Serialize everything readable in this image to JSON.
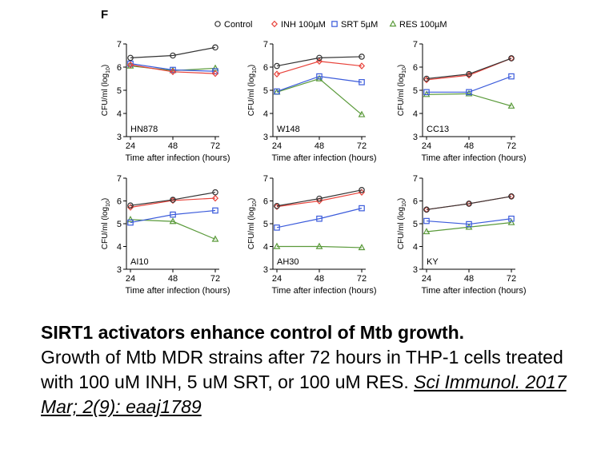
{
  "panel_letter": "F",
  "legend": {
    "items": [
      {
        "name": "Control",
        "color": "#333333",
        "marker": "circle"
      },
      {
        "name": "INH 100µM",
        "color": "#e8423a",
        "marker": "diamond"
      },
      {
        "name": "SRT 5µM",
        "color": "#3b5bdb",
        "marker": "square"
      },
      {
        "name": "RES 100µM",
        "color": "#5a9a3a",
        "marker": "triangle"
      }
    ]
  },
  "axis_text": {
    "xlabel": "Time after infection (hours)",
    "ylabel_main": "CFU/ml (log",
    "ylabel_sub": "10",
    "ylabel_end": ")"
  },
  "chart_data": [
    {
      "type": "line",
      "panel": "HN878",
      "x": [
        24,
        48,
        72
      ],
      "ylim": [
        3,
        7
      ],
      "yticks": [
        3,
        4,
        5,
        6,
        7
      ],
      "series": [
        {
          "name": "Control",
          "values": [
            6.4,
            6.5,
            6.85
          ]
        },
        {
          "name": "INH 100µM",
          "values": [
            6.1,
            5.8,
            5.72
          ]
        },
        {
          "name": "SRT 5µM",
          "values": [
            6.15,
            5.88,
            5.82
          ]
        },
        {
          "name": "RES 100µM",
          "values": [
            6.05,
            5.85,
            5.95
          ]
        }
      ]
    },
    {
      "type": "line",
      "panel": "W148",
      "x": [
        24,
        48,
        72
      ],
      "ylim": [
        3,
        7
      ],
      "yticks": [
        3,
        4,
        5,
        6,
        7
      ],
      "series": [
        {
          "name": "Control",
          "values": [
            6.05,
            6.4,
            6.45
          ]
        },
        {
          "name": "INH 100µM",
          "values": [
            5.7,
            6.25,
            6.05
          ]
        },
        {
          "name": "SRT 5µM",
          "values": [
            4.95,
            5.6,
            5.35
          ]
        },
        {
          "name": "RES 100µM",
          "values": [
            4.92,
            5.5,
            3.95
          ]
        }
      ]
    },
    {
      "type": "line",
      "panel": "CC13",
      "x": [
        24,
        48,
        72
      ],
      "ylim": [
        3,
        7
      ],
      "yticks": [
        3,
        4,
        5,
        6,
        7
      ],
      "series": [
        {
          "name": "Control",
          "values": [
            5.5,
            5.7,
            6.38
          ]
        },
        {
          "name": "INH 100µM",
          "values": [
            5.45,
            5.65,
            6.38
          ]
        },
        {
          "name": "SRT 5µM",
          "values": [
            4.92,
            4.92,
            5.6
          ]
        },
        {
          "name": "RES 100µM",
          "values": [
            4.82,
            4.85,
            4.32
          ]
        }
      ]
    },
    {
      "type": "line",
      "panel": "AI10",
      "x": [
        24,
        48,
        72
      ],
      "ylim": [
        3,
        7
      ],
      "yticks": [
        3,
        4,
        5,
        6,
        7
      ],
      "series": [
        {
          "name": "Control",
          "values": [
            5.8,
            6.05,
            6.38
          ]
        },
        {
          "name": "INH 100µM",
          "values": [
            5.72,
            6.02,
            6.12
          ]
        },
        {
          "name": "SRT 5µM",
          "values": [
            5.05,
            5.4,
            5.58
          ]
        },
        {
          "name": "RES 100µM",
          "values": [
            5.18,
            5.1,
            4.32
          ]
        }
      ]
    },
    {
      "type": "line",
      "panel": "AH30",
      "x": [
        24,
        48,
        72
      ],
      "ylim": [
        3,
        7
      ],
      "yticks": [
        3,
        4,
        5,
        6,
        7
      ],
      "series": [
        {
          "name": "Control",
          "values": [
            5.78,
            6.1,
            6.48
          ]
        },
        {
          "name": "INH 100µM",
          "values": [
            5.75,
            6.0,
            6.38
          ]
        },
        {
          "name": "SRT 5µM",
          "values": [
            4.83,
            5.22,
            5.68
          ]
        },
        {
          "name": "RES 100µM",
          "values": [
            4.0,
            4.0,
            3.95
          ]
        }
      ]
    },
    {
      "type": "line",
      "panel": "KY",
      "x": [
        24,
        48,
        72
      ],
      "ylim": [
        3,
        7
      ],
      "yticks": [
        3,
        4,
        5,
        6,
        7
      ],
      "series": [
        {
          "name": "Control",
          "values": [
            5.62,
            5.88,
            6.2
          ]
        },
        {
          "name": "INH 100µM",
          "values": [
            5.62,
            5.88,
            6.2
          ]
        },
        {
          "name": "SRT 5µM",
          "values": [
            5.12,
            4.98,
            5.22
          ]
        },
        {
          "name": "RES 100µM",
          "values": [
            4.65,
            4.85,
            5.05
          ]
        }
      ]
    }
  ],
  "caption": {
    "title": "SIRT1 activators enhance control of Mtb growth.",
    "body": "Growth of Mtb MDR strains after 72 hours in THP-1 cells treated with 100 uM INH, 5 uM SRT, or 100 uM RES. ",
    "reference": "Sci Immunol. 2017 Mar; 2(9): eaaj1789"
  }
}
